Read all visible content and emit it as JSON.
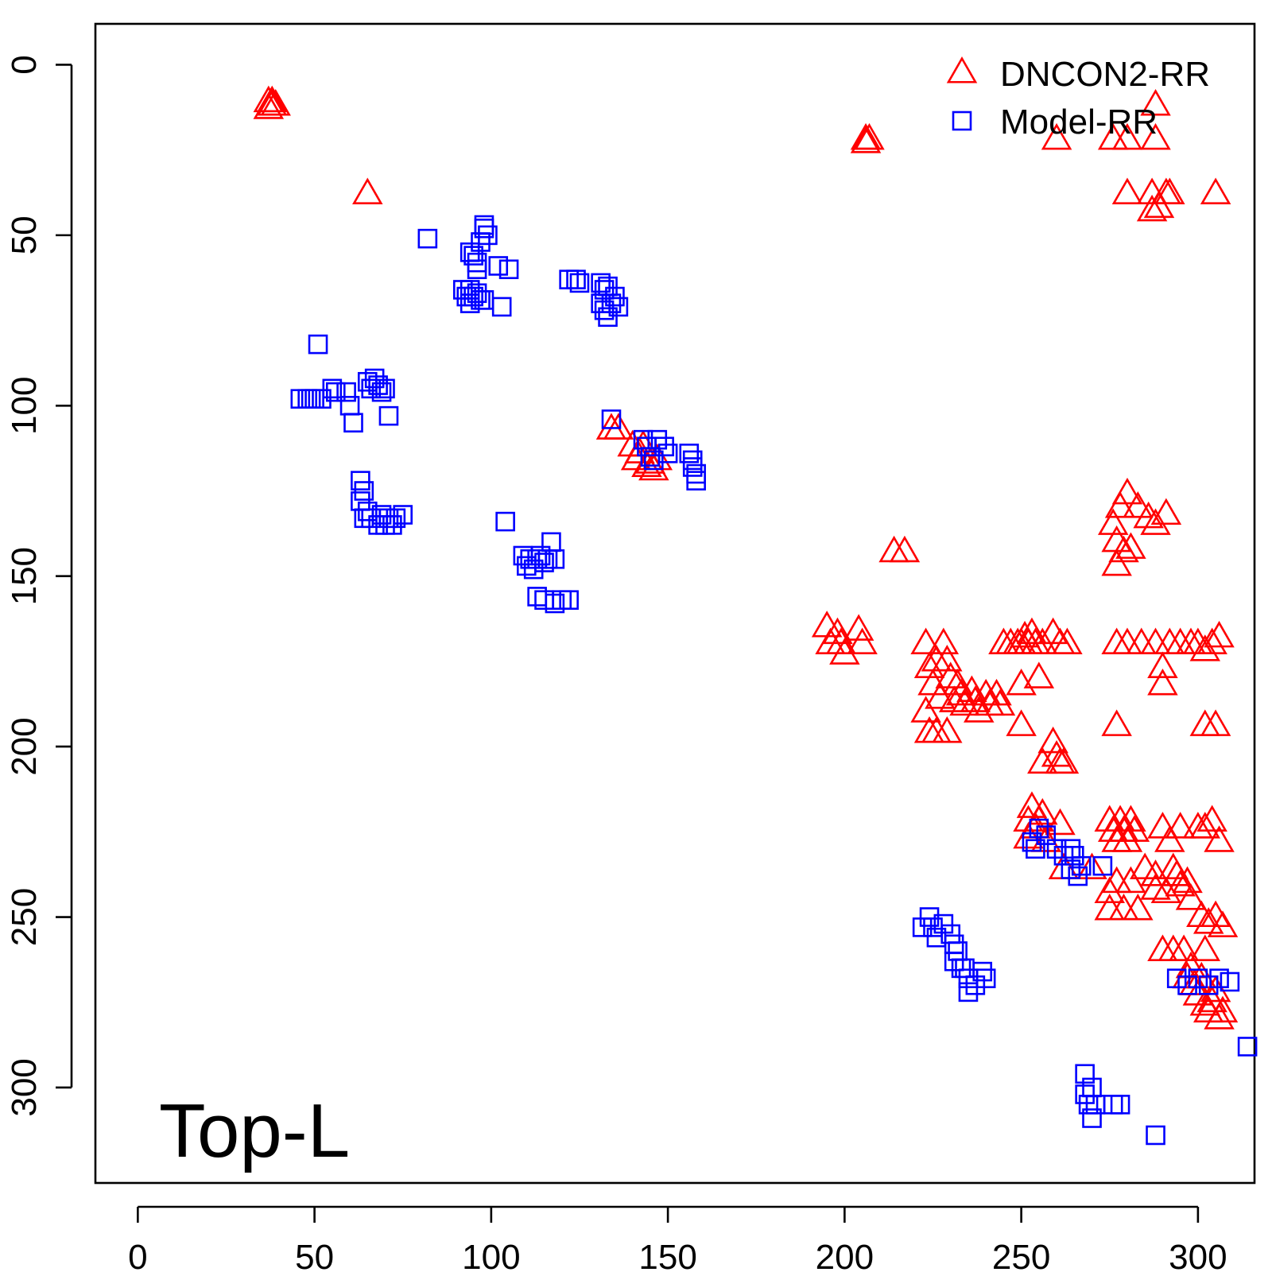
{
  "chart_data": {
    "type": "scatter",
    "title": "",
    "xlabel": "",
    "ylabel": "",
    "xlim": [
      -12,
      316
    ],
    "ylim": [
      -12,
      328
    ],
    "y_reversed": true,
    "x_ticks": [
      "0",
      "50",
      "100",
      "150",
      "200",
      "250",
      "300"
    ],
    "y_ticks": [
      "0",
      "50",
      "100",
      "150",
      "200",
      "250",
      "300"
    ],
    "annotation": "Top-L",
    "legend_position": "top-right",
    "series": [
      {
        "name": "DNCON2-RR",
        "marker": "triangle",
        "color": "#ff0000",
        "points": [
          [
            37,
            11
          ],
          [
            38,
            12
          ],
          [
            37,
            13
          ],
          [
            39,
            12
          ],
          [
            38,
            11
          ],
          [
            65,
            38
          ],
          [
            206,
            22
          ],
          [
            207,
            22
          ],
          [
            206,
            23
          ],
          [
            260,
            22
          ],
          [
            276,
            22
          ],
          [
            280,
            22
          ],
          [
            288,
            22
          ],
          [
            288,
            12
          ],
          [
            280,
            38
          ],
          [
            287,
            43
          ],
          [
            289,
            42
          ],
          [
            291,
            38
          ],
          [
            305,
            38
          ],
          [
            287,
            38
          ],
          [
            292,
            38
          ],
          [
            134,
            107
          ],
          [
            136,
            107
          ],
          [
            140,
            112
          ],
          [
            141,
            116
          ],
          [
            143,
            112
          ],
          [
            144,
            118
          ],
          [
            145,
            117
          ],
          [
            146,
            119
          ],
          [
            142,
            114
          ],
          [
            147,
            116
          ],
          [
            214,
            143
          ],
          [
            217,
            143
          ],
          [
            195,
            165
          ],
          [
            196,
            170
          ],
          [
            198,
            167
          ],
          [
            199,
            170
          ],
          [
            200,
            173
          ],
          [
            204,
            166
          ],
          [
            205,
            170
          ],
          [
            223,
            170
          ],
          [
            224,
            177
          ],
          [
            225,
            182
          ],
          [
            226,
            175
          ],
          [
            227,
            186
          ],
          [
            228,
            170
          ],
          [
            229,
            175
          ],
          [
            230,
            180
          ],
          [
            231,
            187
          ],
          [
            223,
            190
          ],
          [
            224,
            196
          ],
          [
            226,
            196
          ],
          [
            229,
            196
          ],
          [
            232,
            182
          ],
          [
            233,
            185
          ],
          [
            234,
            188
          ],
          [
            236,
            184
          ],
          [
            237,
            187
          ],
          [
            238,
            190
          ],
          [
            240,
            185
          ],
          [
            241,
            188
          ],
          [
            243,
            185
          ],
          [
            244,
            188
          ],
          [
            245,
            170
          ],
          [
            247,
            170
          ],
          [
            249,
            170
          ],
          [
            250,
            170
          ],
          [
            251,
            168
          ],
          [
            252,
            170
          ],
          [
            253,
            167
          ],
          [
            254,
            170
          ],
          [
            256,
            170
          ],
          [
            255,
            180
          ],
          [
            250,
            182
          ],
          [
            259,
            167
          ],
          [
            261,
            170
          ],
          [
            263,
            170
          ],
          [
            250,
            194
          ],
          [
            259,
            199
          ],
          [
            260,
            203
          ],
          [
            256,
            205
          ],
          [
            261,
            205
          ],
          [
            262,
            205
          ],
          [
            276,
            135
          ],
          [
            278,
            130
          ],
          [
            280,
            126
          ],
          [
            277,
            140
          ],
          [
            279,
            143
          ],
          [
            277,
            147
          ],
          [
            281,
            142
          ],
          [
            283,
            130
          ],
          [
            286,
            133
          ],
          [
            288,
            135
          ],
          [
            291,
            132
          ],
          [
            277,
            170
          ],
          [
            280,
            170
          ],
          [
            284,
            170
          ],
          [
            288,
            170
          ],
          [
            292,
            170
          ],
          [
            295,
            170
          ],
          [
            298,
            170
          ],
          [
            300,
            170
          ],
          [
            302,
            172
          ],
          [
            304,
            170
          ],
          [
            306,
            168
          ],
          [
            290,
            177
          ],
          [
            290,
            182
          ],
          [
            302,
            194
          ],
          [
            305,
            194
          ],
          [
            277,
            194
          ],
          [
            252,
            222
          ],
          [
            253,
            218
          ],
          [
            254,
            224
          ],
          [
            255,
            222
          ],
          [
            256,
            220
          ],
          [
            252,
            227
          ],
          [
            257,
            228
          ],
          [
            261,
            223
          ],
          [
            262,
            236
          ],
          [
            270,
            236
          ],
          [
            275,
            222
          ],
          [
            276,
            225
          ],
          [
            277,
            228
          ],
          [
            278,
            222
          ],
          [
            279,
            225
          ],
          [
            280,
            228
          ],
          [
            281,
            222
          ],
          [
            282,
            225
          ],
          [
            285,
            236
          ],
          [
            288,
            238
          ],
          [
            290,
            224
          ],
          [
            292,
            228
          ],
          [
            293,
            236
          ],
          [
            294,
            238
          ],
          [
            295,
            224
          ],
          [
            297,
            240
          ],
          [
            300,
            224
          ],
          [
            302,
            224
          ],
          [
            304,
            222
          ],
          [
            306,
            228
          ],
          [
            275,
            243
          ],
          [
            275,
            248
          ],
          [
            277,
            240
          ],
          [
            279,
            248
          ],
          [
            281,
            240
          ],
          [
            283,
            248
          ],
          [
            288,
            242
          ],
          [
            291,
            243
          ],
          [
            295,
            241
          ],
          [
            298,
            245
          ],
          [
            301,
            250
          ],
          [
            303,
            252
          ],
          [
            305,
            250
          ],
          [
            307,
            253
          ],
          [
            290,
            260
          ],
          [
            293,
            260
          ],
          [
            296,
            260
          ],
          [
            302,
            260
          ],
          [
            297,
            268
          ],
          [
            298,
            265
          ],
          [
            299,
            270
          ],
          [
            300,
            273
          ],
          [
            301,
            268
          ],
          [
            302,
            276
          ],
          [
            303,
            278
          ],
          [
            304,
            275
          ],
          [
            305,
            272
          ],
          [
            306,
            280
          ],
          [
            307,
            278
          ]
        ]
      },
      {
        "name": "Model-RR",
        "marker": "square",
        "color": "#0000ff",
        "points": [
          [
            82,
            51
          ],
          [
            98,
            47
          ],
          [
            99,
            50
          ],
          [
            97,
            52
          ],
          [
            98,
            48
          ],
          [
            94,
            55
          ],
          [
            95,
            56
          ],
          [
            96,
            58
          ],
          [
            96,
            60
          ],
          [
            102,
            59
          ],
          [
            105,
            60
          ],
          [
            92,
            66
          ],
          [
            93,
            68
          ],
          [
            94,
            66
          ],
          [
            94,
            70
          ],
          [
            95,
            68
          ],
          [
            96,
            67
          ],
          [
            97,
            69
          ],
          [
            98,
            69
          ],
          [
            103,
            71
          ],
          [
            122,
            63
          ],
          [
            124,
            63
          ],
          [
            125,
            64
          ],
          [
            131,
            64
          ],
          [
            132,
            66
          ],
          [
            133,
            65
          ],
          [
            131,
            70
          ],
          [
            132,
            72
          ],
          [
            133,
            74
          ],
          [
            134,
            70
          ],
          [
            135,
            68
          ],
          [
            136,
            71
          ],
          [
            51,
            82
          ],
          [
            46,
            98
          ],
          [
            48,
            98
          ],
          [
            49,
            98
          ],
          [
            50,
            98
          ],
          [
            52,
            98
          ],
          [
            55,
            95
          ],
          [
            56,
            96
          ],
          [
            59,
            96
          ],
          [
            60,
            100
          ],
          [
            61,
            105
          ],
          [
            65,
            93
          ],
          [
            66,
            95
          ],
          [
            67,
            92
          ],
          [
            68,
            94
          ],
          [
            69,
            96
          ],
          [
            70,
            95
          ],
          [
            71,
            103
          ],
          [
            134,
            104
          ],
          [
            143,
            110
          ],
          [
            144,
            112
          ],
          [
            145,
            115
          ],
          [
            146,
            116
          ],
          [
            147,
            110
          ],
          [
            149,
            112
          ],
          [
            150,
            114
          ],
          [
            156,
            114
          ],
          [
            157,
            118
          ],
          [
            158,
            120
          ],
          [
            158,
            122
          ],
          [
            157,
            116
          ],
          [
            63,
            122
          ],
          [
            64,
            125
          ],
          [
            63,
            128
          ],
          [
            64,
            133
          ],
          [
            65,
            131
          ],
          [
            66,
            133
          ],
          [
            68,
            135
          ],
          [
            69,
            132
          ],
          [
            70,
            135
          ],
          [
            71,
            133
          ],
          [
            72,
            135
          ],
          [
            73,
            133
          ],
          [
            75,
            132
          ],
          [
            104,
            134
          ],
          [
            109,
            144
          ],
          [
            110,
            147
          ],
          [
            111,
            145
          ],
          [
            112,
            148
          ],
          [
            113,
            145
          ],
          [
            114,
            144
          ],
          [
            115,
            146
          ],
          [
            116,
            145
          ],
          [
            117,
            140
          ],
          [
            118,
            145
          ],
          [
            113,
            156
          ],
          [
            115,
            157
          ],
          [
            118,
            158
          ],
          [
            120,
            157
          ],
          [
            122,
            157
          ],
          [
            224,
            250
          ],
          [
            225,
            253
          ],
          [
            226,
            256
          ],
          [
            228,
            252
          ],
          [
            230,
            255
          ],
          [
            231,
            258
          ],
          [
            232,
            260
          ],
          [
            233,
            265
          ],
          [
            235,
            268
          ],
          [
            237,
            270
          ],
          [
            239,
            266
          ],
          [
            240,
            268
          ],
          [
            235,
            272
          ],
          [
            222,
            253
          ],
          [
            231,
            263
          ],
          [
            234,
            265
          ],
          [
            253,
            228
          ],
          [
            254,
            230
          ],
          [
            255,
            224
          ],
          [
            257,
            226
          ],
          [
            260,
            230
          ],
          [
            262,
            232
          ],
          [
            264,
            236
          ],
          [
            266,
            238
          ],
          [
            267,
            235
          ],
          [
            264,
            230
          ],
          [
            265,
            232
          ],
          [
            273,
            235
          ],
          [
            294,
            268
          ],
          [
            297,
            270
          ],
          [
            300,
            268
          ],
          [
            303,
            270
          ],
          [
            306,
            268
          ],
          [
            309,
            269
          ],
          [
            314,
            288
          ],
          [
            268,
            296
          ],
          [
            268,
            302
          ],
          [
            269,
            305
          ],
          [
            270,
            309
          ],
          [
            270,
            300
          ],
          [
            271,
            305
          ],
          [
            276,
            305
          ],
          [
            278,
            305
          ],
          [
            288,
            314
          ]
        ]
      }
    ]
  }
}
